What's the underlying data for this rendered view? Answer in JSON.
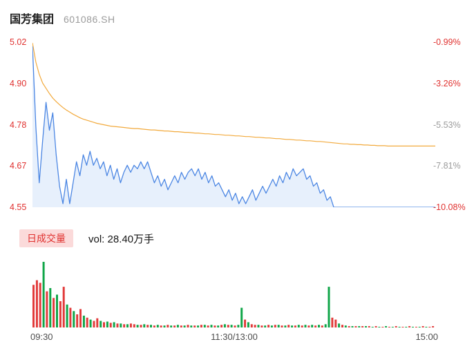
{
  "header": {
    "stock_name": "国芳集团",
    "stock_code": "601086.SH"
  },
  "price_axis": {
    "left_labels": [
      "5.02",
      "4.90",
      "4.78",
      "4.67",
      "4.55"
    ],
    "left_colors": [
      "#e0312f",
      "#e0312f",
      "#e0312f",
      "#e0312f",
      "#e0312f"
    ],
    "right_labels": [
      "-0.99%",
      "-3.26%",
      "-5.53%",
      "-7.81%",
      "-10.08%"
    ],
    "right_colors": [
      "#e0312f",
      "#e0312f",
      "#9b9b9b",
      "#9b9b9b",
      "#e0312f"
    ]
  },
  "volume": {
    "badge_label": "日成交量",
    "value_text": "vol: 28.40万手"
  },
  "x_axis": {
    "labels": [
      "09:30",
      "11:30/13:00",
      "15:00"
    ]
  },
  "colors": {
    "price_line": "#4b86e3",
    "price_fill": "#e7f0fc",
    "avg_line": "#f2a93b",
    "vol_up": "#e23b3b",
    "vol_down": "#11a649"
  },
  "chart_data": [
    {
      "type": "line",
      "title": "国芳集团 601086.SH 分时 intraday price",
      "x_ticks": [
        "09:30",
        "11:30/13:00",
        "15:00"
      ],
      "y_ticks_price": [
        "5.02",
        "4.90",
        "4.78",
        "4.67",
        "4.55"
      ],
      "y_ticks_pct": [
        "-0.99%",
        "-3.26%",
        "-5.53%",
        "-7.81%",
        "-10.08%"
      ],
      "ylim": [
        4.55,
        5.02
      ],
      "grid": false,
      "series": [
        {
          "name": "price",
          "color_key": "price_line",
          "values": [
            5.01,
            4.78,
            4.62,
            4.74,
            4.85,
            4.77,
            4.82,
            4.7,
            4.61,
            4.56,
            4.63,
            4.56,
            4.62,
            4.68,
            4.64,
            4.7,
            4.67,
            4.71,
            4.67,
            4.69,
            4.66,
            4.68,
            4.64,
            4.67,
            4.63,
            4.66,
            4.62,
            4.65,
            4.67,
            4.65,
            4.67,
            4.66,
            4.68,
            4.66,
            4.68,
            4.65,
            4.62,
            4.64,
            4.61,
            4.63,
            4.6,
            4.62,
            4.64,
            4.62,
            4.65,
            4.63,
            4.65,
            4.66,
            4.64,
            4.66,
            4.63,
            4.65,
            4.62,
            4.64,
            4.61,
            4.62,
            4.6,
            4.58,
            4.6,
            4.57,
            4.59,
            4.56,
            4.58,
            4.56,
            4.58,
            4.6,
            4.57,
            4.59,
            4.61,
            4.59,
            4.61,
            4.63,
            4.61,
            4.64,
            4.62,
            4.65,
            4.63,
            4.66,
            4.64,
            4.65,
            4.66,
            4.63,
            4.64,
            4.61,
            4.62,
            4.59,
            4.6,
            4.57,
            4.58,
            4.55,
            4.55,
            4.55,
            4.55,
            4.55,
            4.55,
            4.55,
            4.55,
            4.55,
            4.55,
            4.55,
            4.55,
            4.55,
            4.55,
            4.55,
            4.55,
            4.55,
            4.55,
            4.55,
            4.55,
            4.55,
            4.55,
            4.55,
            4.55,
            4.55,
            4.55,
            4.55,
            4.55,
            4.55,
            4.55,
            4.55
          ]
        },
        {
          "name": "avg_price",
          "color_key": "avg_line",
          "values": [
            5.02,
            4.965,
            4.93,
            4.905,
            4.89,
            4.875,
            4.862,
            4.852,
            4.843,
            4.835,
            4.828,
            4.822,
            4.816,
            4.811,
            4.806,
            4.802,
            4.799,
            4.796,
            4.793,
            4.79,
            4.788,
            4.786,
            4.784,
            4.782,
            4.781,
            4.78,
            4.779,
            4.778,
            4.777,
            4.776,
            4.775,
            4.775,
            4.774,
            4.773,
            4.772,
            4.771,
            4.771,
            4.77,
            4.769,
            4.768,
            4.768,
            4.767,
            4.766,
            4.766,
            4.765,
            4.764,
            4.764,
            4.763,
            4.762,
            4.762,
            4.761,
            4.76,
            4.76,
            4.759,
            4.758,
            4.758,
            4.757,
            4.756,
            4.756,
            4.755,
            4.754,
            4.754,
            4.753,
            4.752,
            4.752,
            4.751,
            4.75,
            4.75,
            4.749,
            4.748,
            4.748,
            4.747,
            4.746,
            4.746,
            4.745,
            4.744,
            4.744,
            4.743,
            4.742,
            4.742,
            4.741,
            4.74,
            4.74,
            4.739,
            4.738,
            4.738,
            4.737,
            4.736,
            4.735,
            4.734,
            4.733,
            4.732,
            4.731,
            4.731,
            4.73,
            4.73,
            4.729,
            4.729,
            4.728,
            4.728,
            4.727,
            4.727,
            4.726,
            4.726,
            4.726,
            4.725,
            4.725,
            4.725,
            4.725,
            4.725,
            4.725,
            4.725,
            4.725,
            4.725,
            4.725,
            4.725,
            4.725,
            4.725,
            4.725,
            4.725
          ]
        }
      ]
    },
    {
      "type": "bar",
      "title": "volume (relative height, total vol: 28.40万手)",
      "values": [
        65,
        72,
        68,
        100,
        55,
        60,
        45,
        50,
        40,
        62,
        35,
        30,
        25,
        20,
        28,
        18,
        15,
        12,
        10,
        14,
        10,
        8,
        9,
        7,
        8,
        6,
        6,
        5,
        5,
        6,
        5,
        4,
        4,
        5,
        4,
        4,
        3,
        4,
        3,
        3,
        4,
        3,
        3,
        4,
        3,
        3,
        4,
        3,
        3,
        3,
        4,
        4,
        3,
        4,
        3,
        3,
        4,
        5,
        4,
        4,
        3,
        4,
        30,
        12,
        8,
        5,
        4,
        4,
        3,
        3,
        4,
        3,
        4,
        4,
        3,
        3,
        4,
        3,
        3,
        4,
        3,
        4,
        3,
        4,
        3,
        4,
        3,
        5,
        62,
        15,
        12,
        6,
        4,
        3,
        2,
        2,
        2,
        2,
        2,
        2,
        2,
        1,
        2,
        1,
        1,
        2,
        1,
        1,
        2,
        1,
        1,
        1,
        2,
        1,
        1,
        1,
        2,
        1,
        1,
        2
      ],
      "colors": [
        "r",
        "r",
        "r",
        "g",
        "r",
        "g",
        "r",
        "g",
        "r",
        "r",
        "g",
        "r",
        "g",
        "r",
        "r",
        "g",
        "r",
        "g",
        "r",
        "r",
        "g",
        "r",
        "g",
        "r",
        "g",
        "r",
        "g",
        "r",
        "g",
        "r",
        "r",
        "g",
        "r",
        "g",
        "r",
        "g",
        "r",
        "g",
        "r",
        "g",
        "r",
        "g",
        "r",
        "g",
        "r",
        "g",
        "r",
        "g",
        "r",
        "g",
        "r",
        "g",
        "r",
        "g",
        "r",
        "g",
        "r",
        "g",
        "r",
        "g",
        "r",
        "g",
        "g",
        "r",
        "g",
        "r",
        "r",
        "g",
        "r",
        "g",
        "r",
        "g",
        "r",
        "g",
        "r",
        "g",
        "r",
        "g",
        "r",
        "g",
        "r",
        "g",
        "r",
        "g",
        "r",
        "g",
        "r",
        "g",
        "g",
        "r",
        "r",
        "g",
        "r",
        "g",
        "r",
        "g",
        "r",
        "g",
        "r",
        "g",
        "r",
        "g",
        "r",
        "g",
        "r",
        "g",
        "r",
        "g",
        "r",
        "g",
        "r",
        "g",
        "r",
        "g",
        "r",
        "g",
        "r",
        "g",
        "r",
        "r"
      ]
    }
  ]
}
